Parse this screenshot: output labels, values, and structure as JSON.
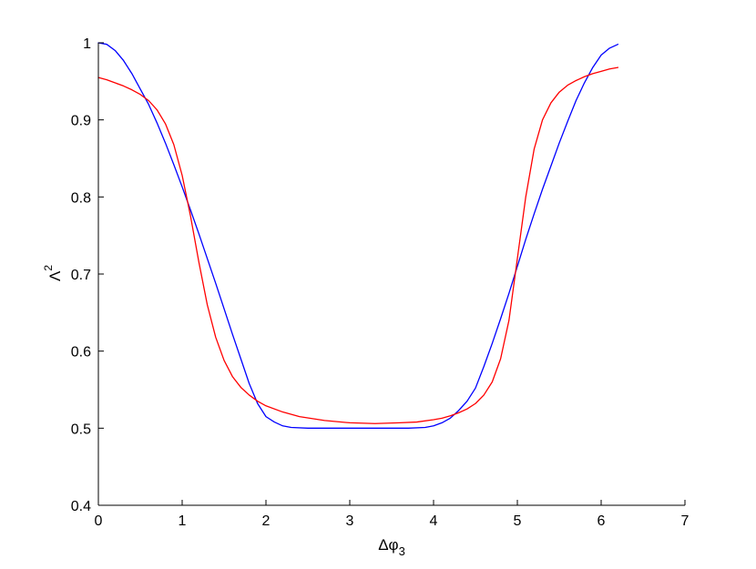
{
  "chart_data": {
    "type": "line",
    "title": "",
    "xlabel": "Δφ",
    "xlabel_sub": "3",
    "ylabel": "Λ",
    "ylabel_sup": "2",
    "xlim": [
      0,
      7
    ],
    "ylim": [
      0.4,
      1.0
    ],
    "x_ticks": [
      0,
      1,
      2,
      3,
      4,
      5,
      6,
      7
    ],
    "y_ticks": [
      0.4,
      0.5,
      0.6,
      0.7,
      0.8,
      0.9,
      1
    ],
    "x_tick_labels": [
      "0",
      "1",
      "2",
      "3",
      "4",
      "5",
      "6",
      "7"
    ],
    "y_tick_labels": [
      "0.4",
      "0.5",
      "0.6",
      "0.7",
      "0.8",
      "0.9",
      "1"
    ],
    "grid": false,
    "legend": "none",
    "series": [
      {
        "color": "#0000ff",
        "x": [
          0,
          0.1,
          0.2,
          0.3,
          0.4,
          0.5,
          0.6,
          0.7,
          0.8,
          0.9,
          1.0,
          1.1,
          1.2,
          1.3,
          1.4,
          1.5,
          1.6,
          1.7,
          1.8,
          1.9,
          2.0,
          2.1,
          2.2,
          2.3,
          2.5,
          2.7,
          3.0,
          3.3,
          3.5,
          3.7,
          3.9,
          4.0,
          4.1,
          4.2,
          4.3,
          4.4,
          4.5,
          4.6,
          4.7,
          4.8,
          4.9,
          5.0,
          5.1,
          5.2,
          5.3,
          5.4,
          5.5,
          5.6,
          5.7,
          5.8,
          5.9,
          6.0,
          6.1,
          6.2
        ],
        "y": [
          1.0,
          0.998,
          0.99,
          0.977,
          0.96,
          0.94,
          0.92,
          0.896,
          0.87,
          0.842,
          0.813,
          0.783,
          0.752,
          0.72,
          0.688,
          0.655,
          0.622,
          0.59,
          0.558,
          0.532,
          0.515,
          0.508,
          0.503,
          0.501,
          0.5,
          0.5,
          0.5,
          0.5,
          0.5,
          0.5,
          0.501,
          0.503,
          0.507,
          0.513,
          0.523,
          0.535,
          0.552,
          0.58,
          0.61,
          0.642,
          0.675,
          0.71,
          0.745,
          0.778,
          0.81,
          0.84,
          0.87,
          0.898,
          0.925,
          0.948,
          0.968,
          0.984,
          0.993,
          0.998
        ]
      },
      {
        "color": "#ff0000",
        "x": [
          0,
          0.1,
          0.2,
          0.3,
          0.4,
          0.5,
          0.6,
          0.7,
          0.8,
          0.9,
          1.0,
          1.1,
          1.2,
          1.3,
          1.4,
          1.5,
          1.6,
          1.7,
          1.8,
          1.9,
          2.0,
          2.2,
          2.4,
          2.7,
          3.0,
          3.3,
          3.6,
          3.8,
          4.0,
          4.1,
          4.2,
          4.3,
          4.4,
          4.5,
          4.6,
          4.7,
          4.8,
          4.9,
          5.0,
          5.1,
          5.2,
          5.3,
          5.4,
          5.5,
          5.6,
          5.7,
          5.8,
          5.9,
          6.0,
          6.1,
          6.2
        ],
        "y": [
          0.955,
          0.952,
          0.948,
          0.944,
          0.939,
          0.933,
          0.925,
          0.913,
          0.895,
          0.868,
          0.828,
          0.775,
          0.715,
          0.66,
          0.618,
          0.588,
          0.567,
          0.553,
          0.543,
          0.535,
          0.529,
          0.521,
          0.515,
          0.51,
          0.507,
          0.506,
          0.507,
          0.508,
          0.511,
          0.513,
          0.516,
          0.52,
          0.525,
          0.532,
          0.543,
          0.56,
          0.59,
          0.64,
          0.72,
          0.8,
          0.862,
          0.9,
          0.922,
          0.936,
          0.945,
          0.951,
          0.956,
          0.96,
          0.963,
          0.966,
          0.968
        ]
      }
    ]
  }
}
